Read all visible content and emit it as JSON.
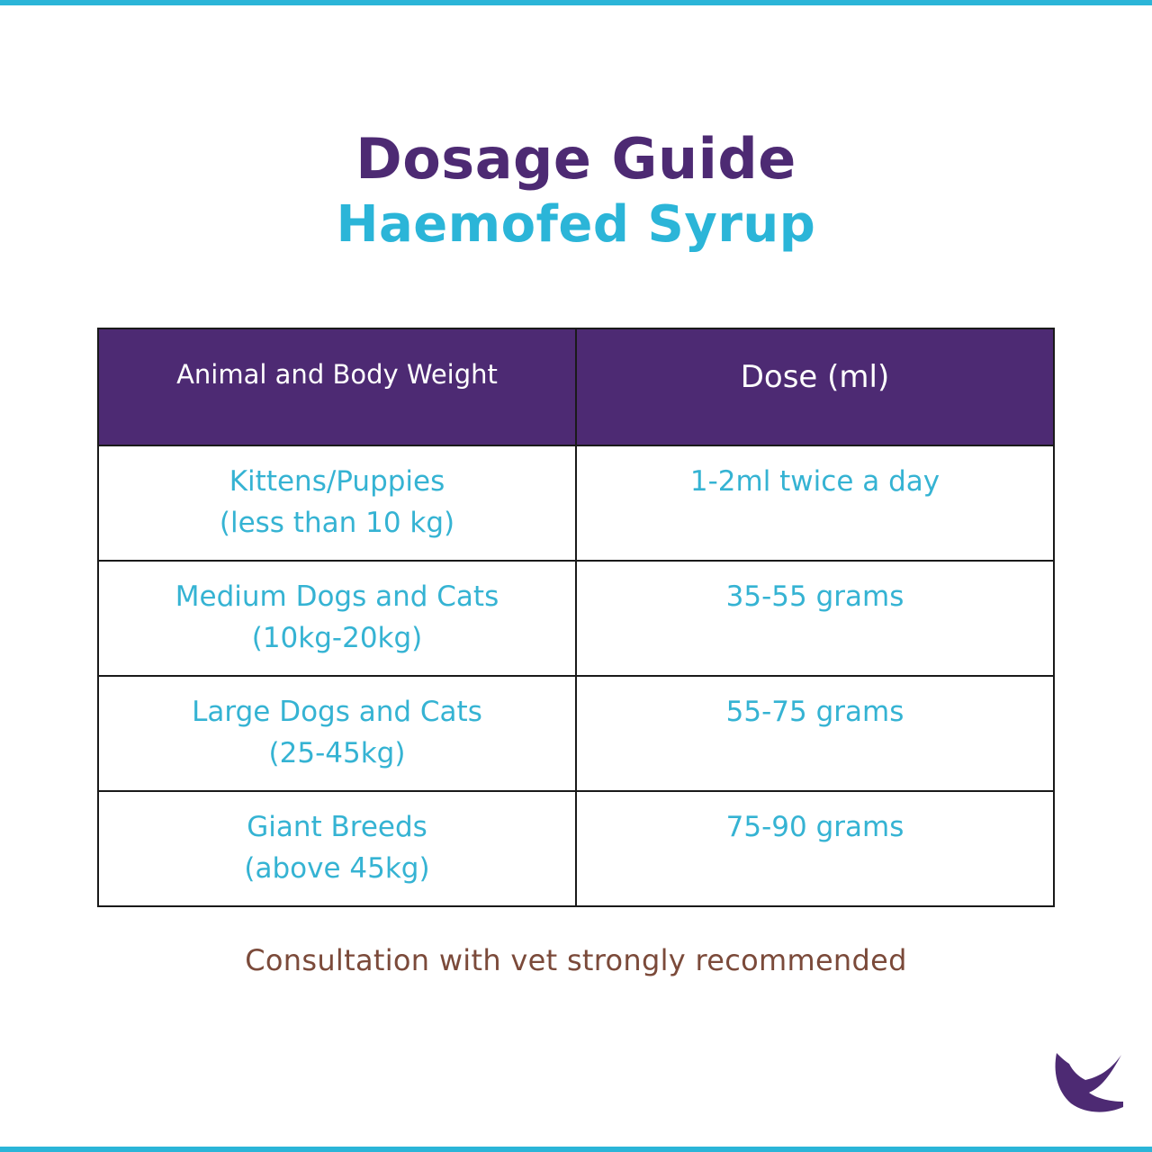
{
  "colors": {
    "accent_stripe": "#2bb5d8",
    "title_purple": "#4d2a73",
    "title_cyan": "#2bb5d8",
    "header_bg": "#4d2a73",
    "cell_text": "#35b3d3",
    "note_text": "#7b4a3a",
    "logo_purple": "#4d2a73"
  },
  "header": {
    "title": "Dosage Guide",
    "subtitle": "Haemofed Syrup"
  },
  "table": {
    "columns": [
      "Animal and Body Weight",
      "Dose (ml)"
    ],
    "rows": [
      {
        "animal": "Kittens/Puppies",
        "weight": "(less than 10 kg)",
        "dose": "1-2ml twice a day"
      },
      {
        "animal": "Medium Dogs and Cats",
        "weight": "(10kg-20kg)",
        "dose": "35-55 grams"
      },
      {
        "animal": "Large Dogs and Cats",
        "weight": "(25-45kg)",
        "dose": "55-75 grams"
      },
      {
        "animal": "Giant Breeds",
        "weight": "(above 45kg)",
        "dose": "75-90 grams"
      }
    ]
  },
  "footer": {
    "note": "Consultation with vet strongly recommended",
    "logo_icon": "brand-logo-icon"
  }
}
